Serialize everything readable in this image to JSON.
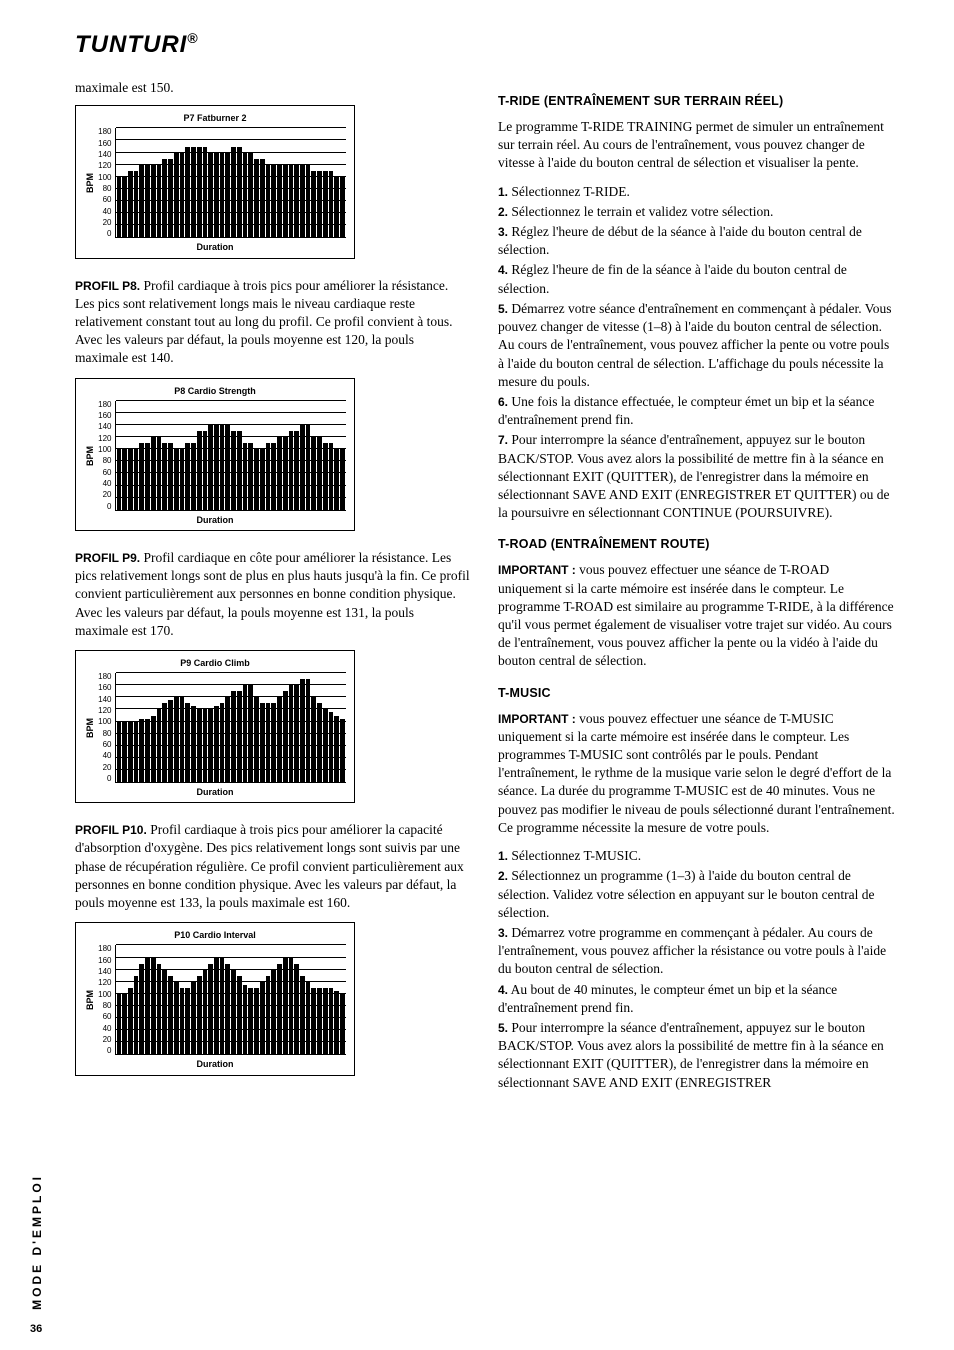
{
  "logo_text": "TUNTURI",
  "logo_symbol": "®",
  "sidebar_text": "MODE D'EMPLOI",
  "page_number": "36",
  "left": {
    "intro": "maximale est 150.",
    "profiles": [
      {
        "label": "PROFIL P8.",
        "text": " Profil cardiaque à trois pics pour améliorer la résistance. Les pics sont relativement longs mais le niveau cardiaque reste relativement constant tout au long du profil. Ce profil convient à tous. Avec les valeurs par défaut, la pouls moyenne est 120, la pouls maximale est 140."
      },
      {
        "label": "PROFIL P9.",
        "text": " Profil cardiaque en côte pour améliorer la résistance. Les pics relativement longs sont de plus en plus hauts jusqu'à la fin. Ce profil convient particulièrement aux personnes en bonne condition physique. Avec les valeurs par défaut, la pouls moyenne est 131, la pouls maximale est 170."
      },
      {
        "label": "PROFIL P10.",
        "text": " Profil cardiaque à trois pics pour améliorer la capacité d'absorption d'oxygène. Des pics relativement longs sont suivis par une phase de récupération régulière. Ce profil convient particulièrement aux personnes en bonne condition physique. Avec les valeurs par défaut, la pouls moyenne est 133, la pouls maximale est 160."
      }
    ]
  },
  "charts": [
    {
      "title": "P7 Fatburner 2",
      "ylabel": "BPM",
      "xlabel": "Duration",
      "ymax": 180,
      "ticks": [
        "180",
        "160",
        "140",
        "120",
        "100",
        "80",
        "60",
        "40",
        "20",
        "0"
      ],
      "values": [
        100,
        100,
        110,
        110,
        120,
        120,
        120,
        120,
        130,
        130,
        140,
        140,
        150,
        150,
        150,
        150,
        140,
        140,
        140,
        140,
        150,
        150,
        140,
        140,
        130,
        130,
        120,
        120,
        120,
        120,
        120,
        120,
        120,
        120,
        110,
        110,
        110,
        110,
        100,
        100
      ]
    },
    {
      "title": "P8 Cardio Strength",
      "ylabel": "BPM",
      "xlabel": "Duration",
      "ymax": 180,
      "ticks": [
        "180",
        "160",
        "140",
        "120",
        "100",
        "80",
        "60",
        "40",
        "20",
        "0"
      ],
      "values": [
        100,
        100,
        100,
        100,
        110,
        110,
        120,
        120,
        110,
        110,
        100,
        100,
        110,
        110,
        130,
        130,
        140,
        140,
        140,
        140,
        130,
        130,
        110,
        110,
        100,
        100,
        110,
        110,
        120,
        120,
        130,
        130,
        140,
        140,
        120,
        120,
        110,
        110,
        100,
        100
      ]
    },
    {
      "title": "P9 Cardio Climb",
      "ylabel": "BPM",
      "xlabel": "Duration",
      "ymax": 180,
      "ticks": [
        "180",
        "160",
        "140",
        "120",
        "100",
        "80",
        "60",
        "40",
        "20",
        "0"
      ],
      "values": [
        100,
        100,
        100,
        100,
        105,
        105,
        110,
        120,
        130,
        135,
        140,
        140,
        130,
        125,
        120,
        120,
        120,
        125,
        130,
        140,
        150,
        150,
        160,
        160,
        140,
        130,
        130,
        130,
        140,
        150,
        160,
        160,
        170,
        170,
        140,
        130,
        120,
        115,
        110,
        105
      ]
    },
    {
      "title": "P10 Cardio Interval",
      "ylabel": "BPM",
      "xlabel": "Duration",
      "ymax": 180,
      "ticks": [
        "180",
        "160",
        "140",
        "120",
        "100",
        "80",
        "60",
        "40",
        "20",
        "0"
      ],
      "values": [
        100,
        100,
        110,
        130,
        150,
        160,
        160,
        150,
        140,
        130,
        120,
        110,
        110,
        120,
        130,
        140,
        150,
        160,
        160,
        150,
        140,
        130,
        115,
        110,
        110,
        120,
        130,
        140,
        150,
        160,
        160,
        150,
        130,
        120,
        110,
        110,
        110,
        110,
        105,
        100
      ]
    }
  ],
  "right": {
    "sec1_heading": "T-RIDE (ENTRAÎNEMENT SUR TERRAIN RÉEL)",
    "sec1_intro": "Le programme T-RIDE TRAINING permet de simuler un entraînement sur terrain réel. Au cours de l'entraînement, vous pouvez changer de vitesse à l'aide du bouton central de sélection et visualiser la pente.",
    "sec1_items": [
      {
        "n": "1.",
        "t": " Sélectionnez T-RIDE."
      },
      {
        "n": "2.",
        "t": " Sélectionnez le terrain et validez votre sélection."
      },
      {
        "n": "3.",
        "t": " Réglez l'heure de début de la séance à l'aide du bouton central de sélection."
      },
      {
        "n": "4.",
        "t": " Réglez l'heure de fin de la séance à l'aide du bouton central de sélection."
      },
      {
        "n": "5.",
        "t": " Démarrez votre séance d'entraînement en commençant à pédaler. Vous pouvez changer de vitesse (1–8) à l'aide du bouton central de sélection. Au cours de l'entraînement, vous pouvez afficher la pente ou votre pouls à l'aide du bouton central de sélection. L'affichage du pouls nécessite la mesure du pouls."
      },
      {
        "n": "6.",
        "t": " Une fois la distance effectuée, le compteur émet un bip et la séance d'entraînement prend fin."
      },
      {
        "n": "7.",
        "t": " Pour interrompre la séance d'entraînement, appuyez sur le bouton BACK/STOP. Vous avez alors la possibilité de mettre fin à la séance en sélectionnant EXIT (QUITTER), de l'enregistrer dans la mémoire en sélectionnant SAVE AND EXIT (ENREGISTRER ET QUITTER) ou de la poursuivre en sélectionnant CONTINUE (POURSUIVRE)."
      }
    ],
    "sec2_heading": "T-ROAD (ENTRAÎNEMENT ROUTE)",
    "sec2_label": "IMPORTANT :",
    "sec2_text": " vous pouvez effectuer une séance de T-ROAD uniquement si la carte mémoire est insérée dans le compteur. Le programme T-ROAD est similaire au programme T-RIDE, à la différence qu'il vous permet également de visualiser votre trajet sur vidéo. Au cours de l'entraînement, vous pouvez afficher la pente ou la vidéo à l'aide du bouton central de sélection.",
    "sec3_heading": "T-MUSIC",
    "sec3_label": "IMPORTANT :",
    "sec3_text": " vous pouvez effectuer une séance de T-MUSIC uniquement si la carte mémoire est insérée dans le compteur. Les programmes T-MUSIC sont contrôlés par le pouls. Pendant l'entraînement, le rythme de la musique varie selon le degré d'effort de la séance. La durée du programme T-MUSIC est de 40 minutes. Vous ne pouvez pas modifier le niveau de pouls sélectionné durant l'entraînement. Ce programme nécessite la mesure de votre pouls.",
    "sec3_items": [
      {
        "n": "1.",
        "t": " Sélectionnez T-MUSIC."
      },
      {
        "n": "2.",
        "t": " Sélectionnez un programme (1–3) à l'aide du bouton central de sélection. Validez votre sélection en appuyant sur le bouton central de sélection."
      },
      {
        "n": "3.",
        "t": " Démarrez votre programme en commençant à pédaler. Au cours de l'entraînement, vous pouvez afficher la résistance ou votre pouls à l'aide du bouton central de sélection."
      },
      {
        "n": "4.",
        "t": " Au bout de 40 minutes, le compteur émet un bip et la séance d'entraînement prend fin."
      },
      {
        "n": "5.",
        "t": " Pour interrompre la séance d'entraînement, appuyez sur le bouton BACK/STOP. Vous avez alors la possibilité de mettre fin à la séance en sélectionnant EXIT (QUITTER), de l'enregistrer dans la mémoire en sélectionnant SAVE AND EXIT (ENREGISTRER"
      }
    ]
  }
}
